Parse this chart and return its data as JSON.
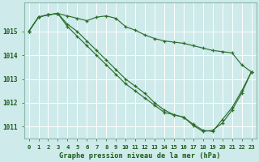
{
  "background_color": "#ceeaea",
  "grid_color": "#b8d8d8",
  "line_color": "#2d6e2d",
  "marker_color": "#2d6e2d",
  "xlabel": "Graphe pression niveau de la mer (hPa)",
  "ylim": [
    1010.5,
    1016.2
  ],
  "xlim": [
    -0.5,
    23.5
  ],
  "yticks": [
    1011,
    1012,
    1013,
    1014,
    1015
  ],
  "xticks": [
    0,
    1,
    2,
    3,
    4,
    5,
    6,
    7,
    8,
    9,
    10,
    11,
    12,
    13,
    14,
    15,
    16,
    17,
    18,
    19,
    20,
    21,
    22,
    23
  ],
  "series1_x": [
    0,
    1,
    2,
    3,
    4,
    5,
    6,
    7,
    8,
    9,
    10,
    11,
    12,
    13,
    14,
    15,
    16,
    17,
    18,
    19,
    20,
    21,
    22,
    23
  ],
  "series1_y": [
    1015.0,
    1015.6,
    1015.7,
    1015.75,
    1015.65,
    1015.55,
    1015.45,
    1015.6,
    1015.65,
    1015.55,
    1015.2,
    1015.05,
    1014.85,
    1014.7,
    1014.6,
    1014.55,
    1014.5,
    1014.4,
    1014.3,
    1014.2,
    1014.15,
    1014.1,
    1013.6,
    1013.3
  ],
  "series2_x": [
    0,
    1,
    2,
    3,
    4,
    5,
    6,
    7,
    8,
    9,
    10,
    11,
    12,
    13,
    14,
    15,
    16,
    17,
    18,
    19,
    20,
    21,
    22,
    23
  ],
  "series2_y": [
    1015.0,
    1015.6,
    1015.7,
    1015.75,
    1015.2,
    1014.8,
    1014.4,
    1014.0,
    1013.6,
    1013.2,
    1012.8,
    1012.5,
    1012.2,
    1011.9,
    1011.6,
    1011.5,
    1011.4,
    1011.1,
    1010.85,
    1010.8,
    1011.3,
    1011.8,
    1012.5,
    1013.3
  ],
  "series3_x": [
    0,
    1,
    2,
    3,
    4,
    5,
    6,
    7,
    8,
    9,
    10,
    11,
    12,
    13,
    14,
    15,
    16,
    17,
    18,
    19,
    20,
    21,
    22,
    23
  ],
  "series3_y": [
    1015.0,
    1015.6,
    1015.7,
    1015.75,
    1015.3,
    1015.0,
    1014.6,
    1014.2,
    1013.8,
    1013.4,
    1013.0,
    1012.7,
    1012.4,
    1012.0,
    1011.7,
    1011.5,
    1011.4,
    1011.05,
    1010.8,
    1010.85,
    1011.15,
    1011.7,
    1012.4,
    1013.3
  ]
}
